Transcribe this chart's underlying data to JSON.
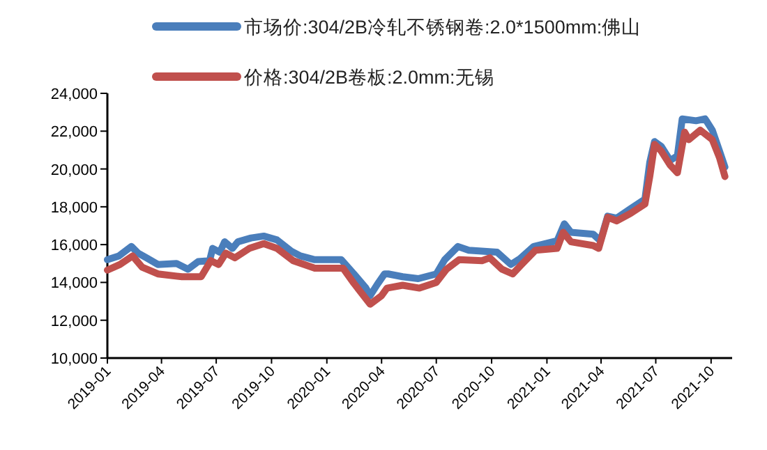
{
  "chart_data": {
    "type": "line",
    "legend": "top",
    "xlim": [
      "2019-01-01",
      "2021-11-05"
    ],
    "xticks": [
      "2019-01",
      "2019-04",
      "2019-07",
      "2019-10",
      "2020-01",
      "2020-04",
      "2020-07",
      "2020-10",
      "2021-01",
      "2021-04",
      "2021-07",
      "2021-10"
    ],
    "ylim": [
      10000,
      24000
    ],
    "yticks": [
      {
        "value": 10000,
        "label": "10,000"
      },
      {
        "value": 12000,
        "label": "12,000"
      },
      {
        "value": 14000,
        "label": "14,000"
      },
      {
        "value": 16000,
        "label": "16,000"
      },
      {
        "value": 18000,
        "label": "18,000"
      },
      {
        "value": 20000,
        "label": "20,000"
      },
      {
        "value": 22000,
        "label": "22,000"
      },
      {
        "value": 24000,
        "label": "24,000"
      }
    ],
    "series": [
      {
        "name": "市场价:304/2B冷轧不锈钢卷:2.0*1500mm:佛山",
        "color": "#4a7ebb",
        "x": [
          "2019-01-01",
          "2019-01-20",
          "2019-02-10",
          "2019-02-21",
          "2019-03-07",
          "2019-03-26",
          "2019-04-26",
          "2019-05-15",
          "2019-06-01",
          "2019-06-20",
          "2019-06-25",
          "2019-07-07",
          "2019-07-15",
          "2019-07-28",
          "2019-08-06",
          "2019-08-28",
          "2019-09-18",
          "2019-10-10",
          "2019-11-03",
          "2019-11-18",
          "2019-12-12",
          "2020-01-25",
          "2020-02-15",
          "2020-03-06",
          "2020-03-13",
          "2020-03-25",
          "2020-04-06",
          "2020-04-12",
          "2020-05-06",
          "2020-06-01",
          "2020-07-01",
          "2020-07-15",
          "2020-08-06",
          "2020-08-24",
          "2020-10-10",
          "2020-11-02",
          "2020-11-17",
          "2020-12-10",
          "2021-01-18",
          "2021-01-30",
          "2021-02-10",
          "2021-03-19",
          "2021-03-31",
          "2021-04-12",
          "2021-04-27",
          "2021-05-20",
          "2021-06-13",
          "2021-06-21",
          "2021-06-29",
          "2021-07-10",
          "2021-07-25",
          "2021-08-06",
          "2021-08-14",
          "2021-09-06",
          "2021-09-21",
          "2021-10-03",
          "2021-10-15",
          "2021-10-24"
        ],
        "values": [
          15200,
          15400,
          15900,
          15550,
          15300,
          14950,
          15000,
          14700,
          15100,
          15150,
          15800,
          15600,
          16150,
          15800,
          16150,
          16350,
          16450,
          16250,
          15650,
          15400,
          15200,
          15200,
          14450,
          13700,
          13300,
          13900,
          14450,
          14450,
          14300,
          14200,
          14450,
          15200,
          15900,
          15700,
          15600,
          14950,
          15250,
          15900,
          16200,
          17100,
          16650,
          16550,
          16200,
          17500,
          17400,
          17900,
          18400,
          20350,
          21450,
          21200,
          20450,
          20700,
          22650,
          22550,
          22650,
          22050,
          20950,
          20100
        ]
      },
      {
        "name": "价格:304/2B卷板:2.0mm:无锡",
        "color": "#c0504d",
        "x": [
          "2019-01-01",
          "2019-01-22",
          "2019-02-12",
          "2019-02-28",
          "2019-03-26",
          "2019-05-05",
          "2019-06-06",
          "2019-06-22",
          "2019-07-05",
          "2019-07-17",
          "2019-08-01",
          "2019-08-25",
          "2019-09-18",
          "2019-10-10",
          "2019-11-06",
          "2019-12-12",
          "2020-01-28",
          "2020-02-15",
          "2020-03-13",
          "2020-04-01",
          "2020-04-10",
          "2020-05-06",
          "2020-06-03",
          "2020-07-01",
          "2020-07-18",
          "2020-08-08",
          "2020-09-15",
          "2020-09-28",
          "2020-10-18",
          "2020-11-05",
          "2020-11-20",
          "2020-12-13",
          "2021-01-18",
          "2021-01-28",
          "2021-02-10",
          "2021-03-19",
          "2021-03-28",
          "2021-04-12",
          "2021-04-27",
          "2021-05-20",
          "2021-06-13",
          "2021-06-21",
          "2021-06-29",
          "2021-07-10",
          "2021-07-25",
          "2021-08-06",
          "2021-08-18",
          "2021-08-25",
          "2021-09-13",
          "2021-10-03",
          "2021-10-15",
          "2021-10-24"
        ],
        "values": [
          14650,
          14950,
          15400,
          14800,
          14450,
          14300,
          14300,
          15150,
          14950,
          15550,
          15300,
          15800,
          16050,
          15800,
          15150,
          14750,
          14750,
          13950,
          12850,
          13300,
          13700,
          13850,
          13700,
          14000,
          14700,
          15200,
          15150,
          15300,
          14700,
          14450,
          14950,
          15700,
          15800,
          16650,
          16150,
          15950,
          15800,
          17450,
          17250,
          17650,
          18150,
          19600,
          21300,
          20950,
          20200,
          19800,
          21950,
          21550,
          22050,
          21550,
          20600,
          19600
        ]
      }
    ]
  }
}
